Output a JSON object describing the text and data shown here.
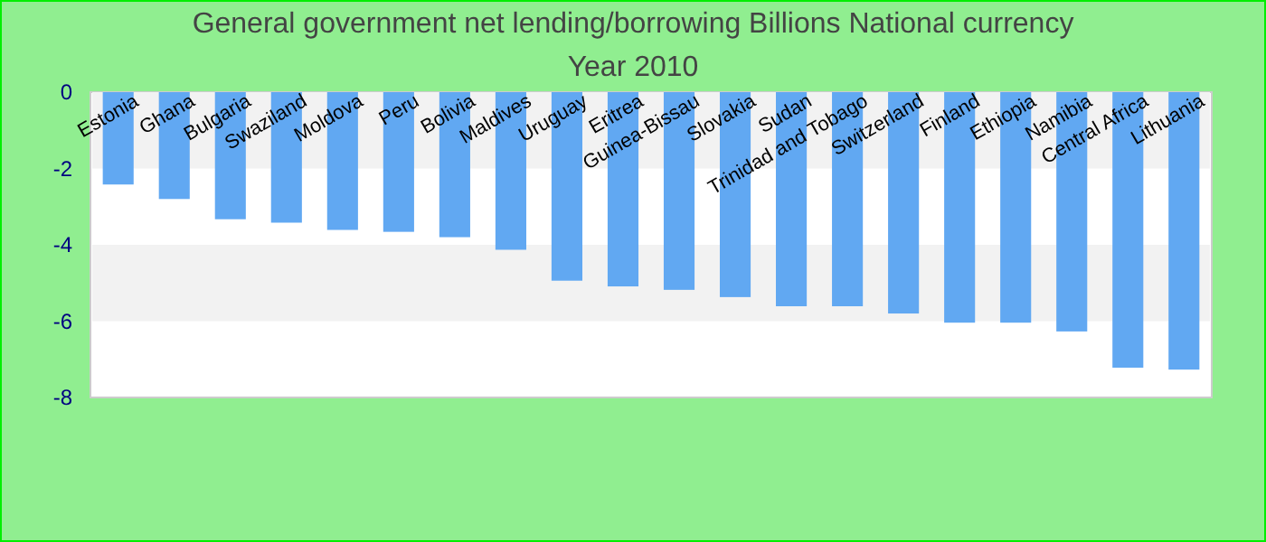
{
  "chart_data": {
    "type": "bar",
    "title": "General government net lending/borrowing Billions National currency",
    "subtitle": "Year 2010",
    "categories": [
      "Estonia",
      "Ghana",
      "Bulgaria",
      "Swaziland",
      "Moldova",
      "Peru",
      "Bolivia",
      "Maldives",
      "Uruguay",
      "Eritrea",
      "Guinea-Bissau",
      "Slovakia",
      "Sudan",
      "Trinidad and Tobago",
      "Switzerland",
      "Finland",
      "Ethiopia",
      "Namibia",
      "Central Africa",
      "Lithuania"
    ],
    "values": [
      -2.42,
      -2.8,
      -3.33,
      -3.42,
      -3.61,
      -3.66,
      -3.8,
      -4.13,
      -4.94,
      -5.09,
      -5.18,
      -5.37,
      -5.61,
      -5.61,
      -5.8,
      -6.04,
      -6.04,
      -6.27,
      -7.22,
      -7.27
    ],
    "color": "#61a8f2",
    "ylim": [
      -8,
      0
    ],
    "yticks": [
      0,
      -2,
      -4,
      -6,
      -8
    ],
    "bands": [
      {
        "axis": "y",
        "from": -2,
        "to": 0,
        "color": "#f2f2f2"
      },
      {
        "axis": "y",
        "from": -6,
        "to": -4,
        "color": "#f2f2f2"
      }
    ]
  }
}
